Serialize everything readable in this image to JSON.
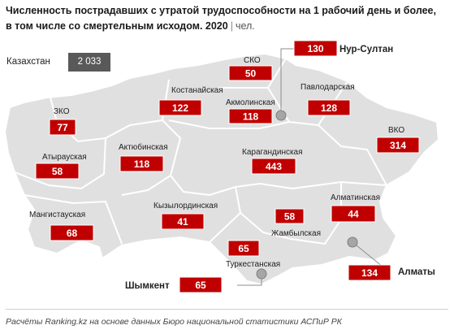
{
  "title": {
    "line1": "Численность пострадавших с утратой трудоспособности на 1 рабочий день и более,",
    "line2": "в том числе со смертельным исходом. 2020",
    "separator": "|",
    "unit": "чел."
  },
  "total": {
    "label": "Казахстан",
    "value": "2 033"
  },
  "footer": "Расчёты Ranking.kz на основе данных Бюро национальной статистики АСПиР РК",
  "colors": {
    "map_fill": "#e0e0e0",
    "map_stroke": "#ffffff",
    "box_fill": "#c00000",
    "box_text": "#ffffff",
    "total_box": "#595959",
    "marker": "#a6a6a6"
  },
  "chart_data": {
    "type": "table",
    "regions": [
      {
        "name": "СКО",
        "value": 50
      },
      {
        "name": "Костанайская",
        "value": 122
      },
      {
        "name": "Акмолинская",
        "value": 118
      },
      {
        "name": "Павлодарская",
        "value": 128
      },
      {
        "name": "ЗКО",
        "value": 77
      },
      {
        "name": "Атырауская",
        "value": 58
      },
      {
        "name": "Актюбинская",
        "value": 118
      },
      {
        "name": "Карагандинская",
        "value": 443
      },
      {
        "name": "ВКО",
        "value": 314
      },
      {
        "name": "Мангистауская",
        "value": 68
      },
      {
        "name": "Кызылординская",
        "value": 41
      },
      {
        "name": "Жамбылская",
        "value": 58
      },
      {
        "name": "Алматинская",
        "value": 44
      },
      {
        "name": "Туркестанская",
        "value": 65
      }
    ],
    "cities": [
      {
        "name": "Нур-Султан",
        "value": 130
      },
      {
        "name": "Алматы",
        "value": 134
      },
      {
        "name": "Шымкент",
        "value": 65
      }
    ]
  }
}
